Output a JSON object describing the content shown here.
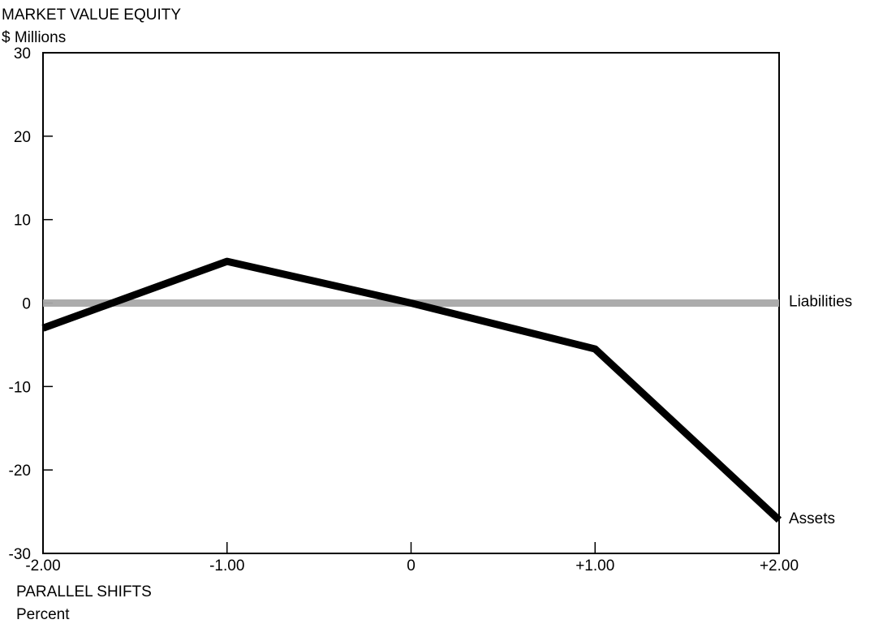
{
  "chart_data": {
    "type": "line",
    "title": "MARKET VALUE EQUITY",
    "subtitle": "$ Millions",
    "xlabel": "PARALLEL SHIFTS",
    "xlabel_unit": "Percent",
    "ylabel": "",
    "x": [
      -2.0,
      -1.0,
      0.0,
      1.0,
      2.0
    ],
    "x_tick_labels": [
      "-2.00",
      "-1.00",
      "0",
      "+1.00",
      "+2.00"
    ],
    "ylim": [
      -30,
      30
    ],
    "xlim": [
      -2.0,
      2.0
    ],
    "y_ticks": [
      30,
      20,
      10,
      0,
      -10,
      -20,
      -30
    ],
    "grid": false,
    "legend": "inline-right",
    "series": [
      {
        "name": "Liabilities",
        "values": [
          0,
          0,
          0,
          0,
          0
        ],
        "color": "#a8a8a8",
        "style": "thick-gray"
      },
      {
        "name": "Assets",
        "values": [
          -3,
          5,
          0,
          -5.5,
          -26
        ],
        "color": "#000000",
        "style": "thick-black"
      }
    ]
  }
}
